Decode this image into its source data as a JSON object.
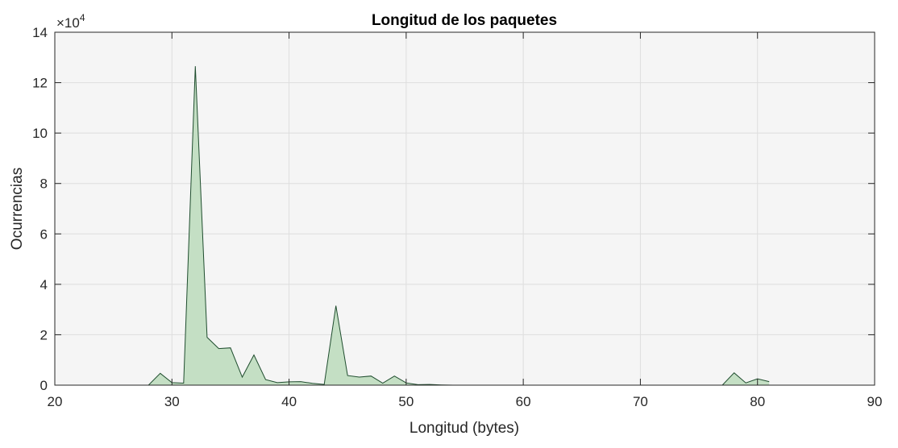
{
  "chart_data": {
    "type": "area",
    "title": "Longitud de los paquetes",
    "xlabel": "Longitud (bytes)",
    "ylabel": "Ocurrencias",
    "xlim": [
      20,
      90
    ],
    "ylim": [
      0,
      140000
    ],
    "xticks": [
      20,
      30,
      40,
      50,
      60,
      70,
      80,
      90
    ],
    "yticks": [
      0,
      20000,
      40000,
      60000,
      80000,
      100000,
      120000,
      140000
    ],
    "ytick_labels": [
      "0",
      "2",
      "4",
      "6",
      "8",
      "10",
      "12",
      "14"
    ],
    "y_exponent_base": "×10",
    "y_exponent_power": "4",
    "grid": true,
    "colors": {
      "fill": "#c4dfc4",
      "line": "#1f4d2e",
      "axes_bg": "#f5f5f5",
      "grid": "#dedede"
    },
    "x": [
      24,
      25,
      26,
      27,
      28,
      29,
      30,
      31,
      32,
      33,
      34,
      35,
      36,
      37,
      38,
      39,
      40,
      41,
      42,
      43,
      44,
      45,
      46,
      47,
      48,
      49,
      50,
      51,
      52,
      53,
      54,
      55,
      56,
      57,
      58,
      59,
      60,
      61,
      62,
      63,
      64,
      65,
      66,
      67,
      68,
      69,
      70,
      71,
      72,
      73,
      74,
      75,
      76,
      77,
      78,
      79,
      80,
      81
    ],
    "y": [
      0,
      0,
      0,
      0,
      0,
      4700,
      1000,
      800,
      126500,
      19000,
      14500,
      14800,
      3200,
      12000,
      2200,
      1000,
      1300,
      1400,
      700,
      300,
      31500,
      3800,
      3200,
      3600,
      800,
      3600,
      900,
      200,
      300,
      100,
      0,
      0,
      0,
      0,
      0,
      0,
      0,
      0,
      0,
      0,
      0,
      0,
      0,
      0,
      0,
      0,
      0,
      0,
      0,
      0,
      0,
      0,
      0,
      0,
      4900,
      900,
      2500,
      1400
    ]
  }
}
